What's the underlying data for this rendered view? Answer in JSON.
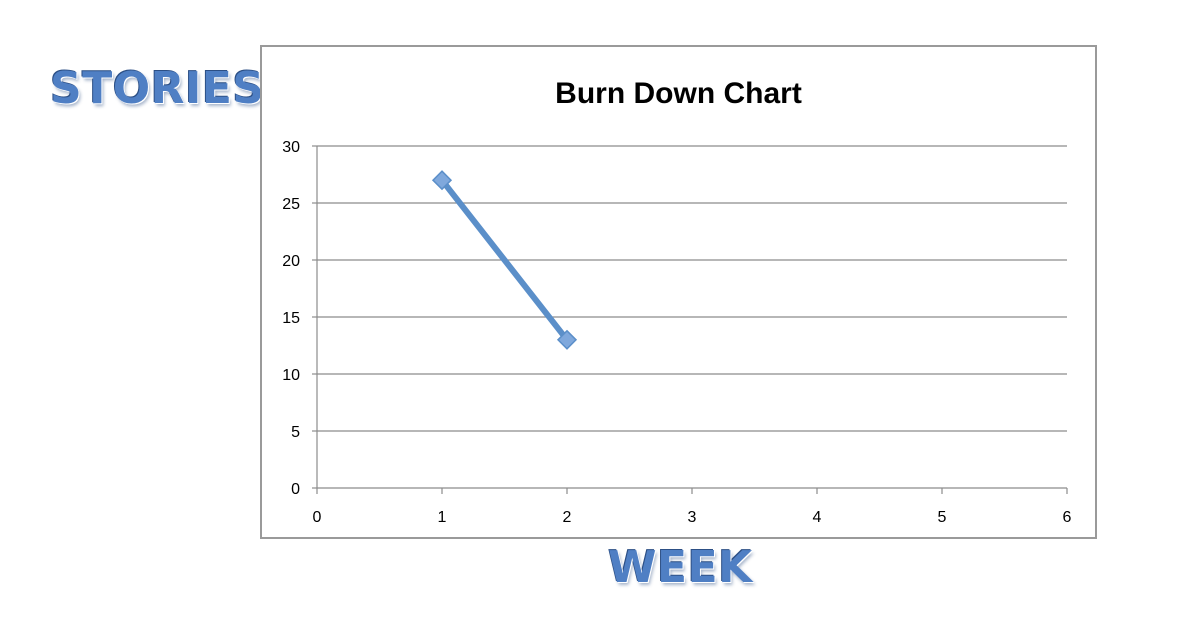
{
  "labels": {
    "y_word": "STORIES",
    "x_word": "WEEK"
  },
  "chart_data": {
    "type": "line",
    "title": "Burn Down Chart",
    "xlabel": "WEEK",
    "ylabel": "STORIES",
    "xlim": [
      0,
      6
    ],
    "ylim": [
      0,
      30
    ],
    "xticks": [
      0,
      1,
      2,
      3,
      4,
      5,
      6
    ],
    "yticks": [
      0,
      5,
      10,
      15,
      20,
      25,
      30
    ],
    "grid": "horizontal",
    "legend": "none",
    "series": [
      {
        "name": "Stories",
        "x": [
          1,
          2
        ],
        "y": [
          27,
          13
        ],
        "color": "#5b8fc9",
        "marker": "diamond"
      }
    ]
  }
}
